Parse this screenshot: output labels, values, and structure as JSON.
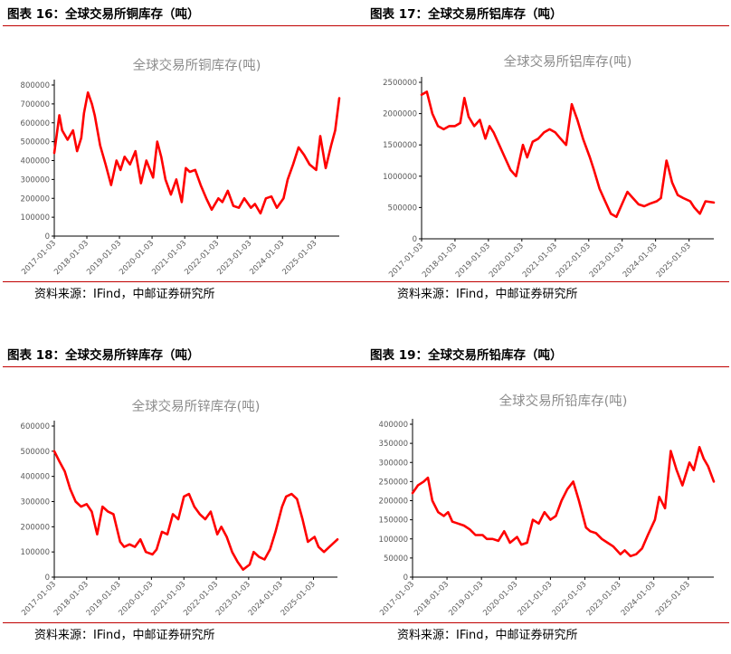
{
  "panels": [
    {
      "header": "图表 16：全球交易所铜库存（吨）",
      "source": "资料来源：IFind，中邮证券研究所",
      "chart_data": {
        "type": "line",
        "title": "全球交易所铜库存(吨)",
        "xlabel": "",
        "ylabel": "",
        "ylim": [
          0,
          800000
        ],
        "yticks": [
          0,
          100000,
          200000,
          300000,
          400000,
          500000,
          600000,
          700000,
          800000
        ],
        "xlim": [
          "2017-01-03",
          "2025-09-30"
        ],
        "xticks": [
          "2017-01-03",
          "2018-01-03",
          "2019-01-03",
          "2020-01-03",
          "2021-01-03",
          "2022-01-03",
          "2023-01-03",
          "2024-01-03",
          "2025-01-03"
        ],
        "grid": false,
        "color": "#ff0000",
        "series": [
          {
            "x": [
              "2017-01-03",
              "2017-03-01",
              "2017-04-01",
              "2017-06-01",
              "2017-08-01",
              "2017-09-15",
              "2017-11-01",
              "2017-12-01",
              "2018-01-15",
              "2018-03-01",
              "2018-04-01",
              "2018-06-01",
              "2018-08-01",
              "2018-10-01",
              "2018-12-01",
              "2019-01-15",
              "2019-03-01",
              "2019-05-01",
              "2019-07-01",
              "2019-09-01",
              "2019-11-01",
              "2020-01-15",
              "2020-03-01",
              "2020-04-15",
              "2020-06-01",
              "2020-08-01",
              "2020-10-01",
              "2020-12-01",
              "2021-01-15",
              "2021-03-01",
              "2021-05-01",
              "2021-07-01",
              "2021-09-01",
              "2021-11-01",
              "2022-01-15",
              "2022-03-01",
              "2022-05-01",
              "2022-07-01",
              "2022-09-01",
              "2022-11-01",
              "2023-01-15",
              "2023-03-01",
              "2023-05-01",
              "2023-07-01",
              "2023-09-01",
              "2023-11-01",
              "2024-01-15",
              "2024-03-01",
              "2024-05-01",
              "2024-07-01",
              "2024-09-01",
              "2024-11-01",
              "2025-01-15",
              "2025-03-01",
              "2025-05-01",
              "2025-07-01",
              "2025-08-15",
              "2025-09-30"
            ],
            "values": [
              440000,
              640000,
              560000,
              510000,
              560000,
              450000,
              520000,
              650000,
              760000,
              700000,
              640000,
              480000,
              380000,
              270000,
              400000,
              350000,
              420000,
              380000,
              450000,
              280000,
              400000,
              310000,
              500000,
              420000,
              300000,
              220000,
              300000,
              180000,
              360000,
              340000,
              350000,
              270000,
              200000,
              140000,
              200000,
              180000,
              240000,
              160000,
              150000,
              200000,
              150000,
              170000,
              120000,
              200000,
              210000,
              150000,
              200000,
              300000,
              380000,
              470000,
              430000,
              380000,
              350000,
              530000,
              360000,
              480000,
              560000,
              730000
            ]
          }
        ]
      }
    },
    {
      "header": "图表 17：全球交易所铝库存（吨）",
      "source": "资料来源：IFind，中邮证券研究所",
      "chart_data": {
        "type": "line",
        "title": "全球交易所铝库存(吨)",
        "xlabel": "",
        "ylabel": "",
        "ylim": [
          0,
          2500000
        ],
        "yticks": [
          0,
          500000,
          1000000,
          1500000,
          2000000,
          2500000
        ],
        "xlim": [
          "2017-01-03",
          "2025-09-30"
        ],
        "xticks": [
          "2017-01-03",
          "2018-01-03",
          "2019-01-03",
          "2020-01-03",
          "2021-01-03",
          "2022-01-03",
          "2023-01-03",
          "2024-01-03",
          "2025-01-03"
        ],
        "grid": false,
        "color": "#ff0000",
        "series": [
          {
            "x": [
              "2017-01-03",
              "2017-03-01",
              "2017-05-01",
              "2017-07-01",
              "2017-09-01",
              "2017-11-01",
              "2018-01-03",
              "2018-03-01",
              "2018-04-15",
              "2018-06-01",
              "2018-08-01",
              "2018-10-01",
              "2018-12-01",
              "2019-01-15",
              "2019-03-01",
              "2019-05-01",
              "2019-07-01",
              "2019-09-01",
              "2019-11-01",
              "2020-01-15",
              "2020-03-01",
              "2020-05-01",
              "2020-07-01",
              "2020-09-01",
              "2020-11-01",
              "2021-01-03",
              "2021-03-01",
              "2021-05-01",
              "2021-07-01",
              "2021-09-01",
              "2021-11-01",
              "2022-01-15",
              "2022-03-01",
              "2022-05-01",
              "2022-07-01",
              "2022-09-01",
              "2022-11-01",
              "2023-01-15",
              "2023-03-01",
              "2023-05-01",
              "2023-07-01",
              "2023-09-01",
              "2023-11-01",
              "2024-01-15",
              "2024-03-01",
              "2024-05-01",
              "2024-05-20",
              "2024-07-01",
              "2024-09-01",
              "2024-11-01",
              "2025-01-15",
              "2025-03-01",
              "2025-05-01",
              "2025-07-01",
              "2025-09-30"
            ],
            "values": [
              2300000,
              2350000,
              2000000,
              1800000,
              1750000,
              1800000,
              1800000,
              1850000,
              2250000,
              1950000,
              1800000,
              1900000,
              1600000,
              1800000,
              1700000,
              1500000,
              1300000,
              1100000,
              1000000,
              1500000,
              1300000,
              1550000,
              1600000,
              1700000,
              1750000,
              1700000,
              1600000,
              1500000,
              2150000,
              1900000,
              1600000,
              1300000,
              1100000,
              800000,
              600000,
              400000,
              350000,
              600000,
              750000,
              650000,
              550000,
              520000,
              560000,
              600000,
              650000,
              1250000,
              1150000,
              900000,
              700000,
              650000,
              600000,
              500000,
              400000,
              600000,
              580000
            ]
          }
        ]
      }
    },
    {
      "header": "图表 18：全球交易所锌库存（吨）",
      "source": "资料来源：IFind，中邮证券研究所",
      "chart_data": {
        "type": "line",
        "title": "全球交易所锌库存(吨)",
        "xlabel": "",
        "ylabel": "",
        "ylim": [
          0,
          600000
        ],
        "yticks": [
          0,
          100000,
          200000,
          300000,
          400000,
          500000,
          600000
        ],
        "xlim": [
          "2017-01-03",
          "2025-09-30"
        ],
        "xticks": [
          "2017-01-03",
          "2018-01-03",
          "2019-01-03",
          "2020-01-03",
          "2021-01-03",
          "2022-01-03",
          "2023-01-03",
          "2024-01-03",
          "2025-01-03"
        ],
        "grid": false,
        "color": "#ff0000",
        "series": [
          {
            "x": [
              "2017-01-03",
              "2017-03-01",
              "2017-05-01",
              "2017-07-01",
              "2017-09-01",
              "2017-11-01",
              "2018-01-03",
              "2018-03-01",
              "2018-05-01",
              "2018-07-01",
              "2018-09-01",
              "2018-11-01",
              "2019-01-15",
              "2019-03-01",
              "2019-05-01",
              "2019-07-01",
              "2019-09-01",
              "2019-11-01",
              "2020-01-15",
              "2020-03-01",
              "2020-05-01",
              "2020-07-01",
              "2020-09-01",
              "2020-11-01",
              "2021-01-03",
              "2021-03-01",
              "2021-05-01",
              "2021-07-01",
              "2021-09-01",
              "2021-11-01",
              "2022-01-15",
              "2022-03-01",
              "2022-05-01",
              "2022-07-01",
              "2022-09-01",
              "2022-11-01",
              "2023-01-15",
              "2023-03-01",
              "2023-05-01",
              "2023-07-01",
              "2023-09-01",
              "2023-11-01",
              "2024-01-15",
              "2024-03-01",
              "2024-05-01",
              "2024-07-01",
              "2024-09-01",
              "2024-11-01",
              "2025-01-15",
              "2025-03-01",
              "2025-05-01",
              "2025-07-01",
              "2025-09-30"
            ],
            "values": [
              500000,
              460000,
              420000,
              350000,
              300000,
              280000,
              290000,
              260000,
              170000,
              280000,
              260000,
              250000,
              140000,
              120000,
              130000,
              120000,
              150000,
              100000,
              90000,
              110000,
              180000,
              170000,
              250000,
              230000,
              320000,
              330000,
              280000,
              250000,
              230000,
              260000,
              170000,
              200000,
              160000,
              100000,
              60000,
              30000,
              50000,
              100000,
              80000,
              70000,
              110000,
              180000,
              280000,
              320000,
              330000,
              310000,
              230000,
              140000,
              160000,
              120000,
              100000,
              120000,
              150000
            ]
          }
        ]
      }
    },
    {
      "header": "图表 19：全球交易所铅库存（吨）",
      "source": "资料来源：IFind，中邮证券研究所",
      "chart_data": {
        "type": "line",
        "title": "全球交易所铅库存(吨)",
        "xlabel": "",
        "ylabel": "",
        "ylim": [
          0,
          400000
        ],
        "yticks": [
          0,
          50000,
          100000,
          150000,
          200000,
          250000,
          300000,
          350000,
          400000
        ],
        "xlim": [
          "2017-01-03",
          "2025-09-30"
        ],
        "xticks": [
          "2017-01-03",
          "2018-01-03",
          "2019-01-03",
          "2020-01-03",
          "2021-01-03",
          "2022-01-03",
          "2023-01-03",
          "2024-01-03",
          "2025-01-03"
        ],
        "grid": false,
        "color": "#ff0000",
        "series": [
          {
            "x": [
              "2017-01-03",
              "2017-03-01",
              "2017-05-01",
              "2017-06-15",
              "2017-08-01",
              "2017-10-01",
              "2017-12-01",
              "2018-01-15",
              "2018-03-01",
              "2018-05-01",
              "2018-07-01",
              "2018-09-01",
              "2018-11-01",
              "2019-01-15",
              "2019-03-01",
              "2019-05-01",
              "2019-07-01",
              "2019-09-01",
              "2019-11-01",
              "2020-01-15",
              "2020-03-01",
              "2020-05-01",
              "2020-07-01",
              "2020-09-01",
              "2020-11-01",
              "2021-01-03",
              "2021-03-01",
              "2021-05-01",
              "2021-07-01",
              "2021-09-01",
              "2021-11-01",
              "2022-01-15",
              "2022-03-01",
              "2022-05-01",
              "2022-07-01",
              "2022-09-01",
              "2022-11-01",
              "2023-01-15",
              "2023-03-01",
              "2023-05-01",
              "2023-07-01",
              "2023-09-01",
              "2023-11-01",
              "2024-01-15",
              "2024-03-01",
              "2024-05-01",
              "2024-07-01",
              "2024-09-01",
              "2024-11-01",
              "2025-01-15",
              "2025-03-01",
              "2025-05-01",
              "2025-06-15",
              "2025-08-01",
              "2025-09-30"
            ],
            "values": [
              220000,
              240000,
              250000,
              260000,
              200000,
              170000,
              160000,
              170000,
              145000,
              140000,
              135000,
              125000,
              110000,
              110000,
              100000,
              100000,
              95000,
              120000,
              90000,
              105000,
              85000,
              90000,
              150000,
              140000,
              170000,
              150000,
              160000,
              200000,
              230000,
              250000,
              200000,
              130000,
              120000,
              115000,
              100000,
              90000,
              80000,
              60000,
              70000,
              55000,
              60000,
              75000,
              110000,
              150000,
              210000,
              180000,
              330000,
              280000,
              240000,
              300000,
              280000,
              340000,
              310000,
              290000,
              250000
            ]
          }
        ]
      }
    }
  ]
}
